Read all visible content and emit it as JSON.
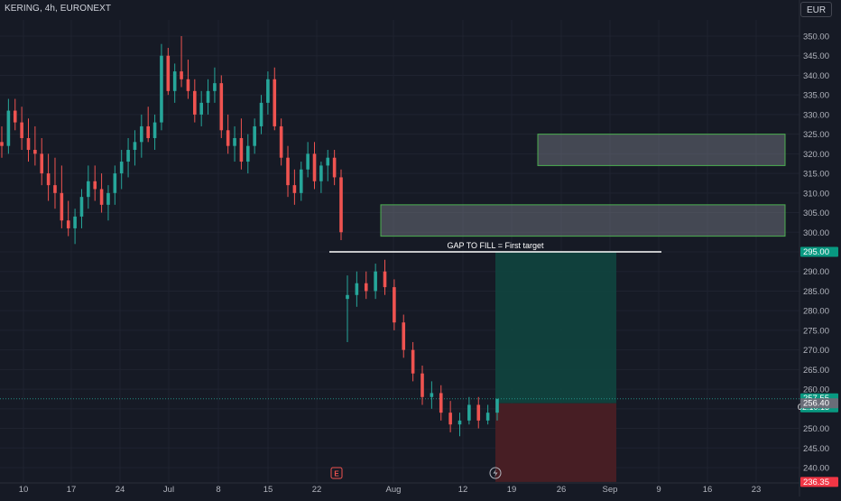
{
  "header": {
    "title": "KERING, 4h, EURONEXT",
    "currency": "EUR"
  },
  "colors": {
    "background": "#161a25",
    "up": "#26a69a",
    "down": "#ef5350",
    "grid": "#1f2330",
    "axis_text": "#b2b5be",
    "zone_stroke": "#4caf50",
    "zone_fill": "#6b6f7a",
    "target_fill": "#10453f",
    "stop_fill": "#4a1f24",
    "label_green": "#089981",
    "label_grey": "#6a6d78",
    "label_red": "#f23645"
  },
  "chart_data": {
    "type": "candlestick",
    "title": "KERING, 4h, EURONEXT",
    "currency": "EUR",
    "y_axis": {
      "ticks": [
        350.0,
        345.0,
        340.0,
        335.0,
        330.0,
        325.0,
        320.0,
        315.0,
        310.0,
        305.0,
        300.0,
        295.0,
        290.0,
        285.0,
        280.0,
        275.0,
        270.0,
        265.0,
        260.0,
        255.0,
        250.0,
        245.0,
        240.0
      ],
      "ylim": [
        237.5,
        352.5
      ]
    },
    "x_axis": {
      "ticks": [
        "10",
        "17",
        "24",
        "Jul",
        "8",
        "15",
        "22",
        "Aug",
        "12",
        "19",
        "26",
        "Sep",
        "9",
        "16",
        "23"
      ]
    },
    "price_labels": [
      {
        "text": "295.00",
        "value": 295.0,
        "kind": "green"
      },
      {
        "text": "257.55",
        "value": 257.55,
        "kind": "green",
        "sub": "02:10:13"
      },
      {
        "text": "256.40",
        "value": 256.4,
        "kind": "grey"
      },
      {
        "text": "236.35",
        "value": 236.35,
        "kind": "red"
      }
    ],
    "annotations": {
      "gap_line": {
        "label": "GAP TO FILL = First target",
        "value": 295.0,
        "x_start": "22",
        "x_end": "9"
      },
      "zones": [
        {
          "top": 325.0,
          "bottom": 317.0,
          "x_start": "19",
          "x_end": "23"
        },
        {
          "top": 307.0,
          "bottom": 299.0,
          "x_start": "Aug",
          "x_end": "23"
        }
      ],
      "position": {
        "entry": 256.4,
        "target": 295.0,
        "stop": 236.35,
        "x_start": "12",
        "x_end": "Sep"
      },
      "current_price": 257.55,
      "events": [
        "E",
        "dividend-icon"
      ]
    },
    "candles": [
      [
        323,
        327,
        319,
        322
      ],
      [
        322,
        334,
        320,
        331
      ],
      [
        331,
        334,
        326,
        328
      ],
      [
        328,
        332,
        321,
        324
      ],
      [
        324,
        329,
        318,
        321
      ],
      [
        321,
        327,
        317,
        320
      ],
      [
        320,
        324,
        312,
        315
      ],
      [
        315,
        320,
        308,
        312
      ],
      [
        312,
        319,
        306,
        310
      ],
      [
        310,
        317,
        301,
        303
      ],
      [
        303,
        308,
        299,
        301
      ],
      [
        301,
        306,
        297,
        304
      ],
      [
        304,
        311,
        301,
        309
      ],
      [
        309,
        317,
        306,
        313
      ],
      [
        313,
        317,
        308,
        311
      ],
      [
        311,
        315,
        305,
        307
      ],
      [
        307,
        312,
        303,
        310
      ],
      [
        310,
        317,
        307,
        315
      ],
      [
        315,
        321,
        311,
        318
      ],
      [
        318,
        324,
        314,
        321
      ],
      [
        321,
        326,
        317,
        323
      ],
      [
        323,
        330,
        319,
        327
      ],
      [
        327,
        332,
        323,
        324
      ],
      [
        324,
        330,
        321,
        328
      ],
      [
        328,
        348,
        326,
        345
      ],
      [
        345,
        347,
        335,
        336
      ],
      [
        336,
        343,
        333,
        341
      ],
      [
        341,
        350,
        337,
        339
      ],
      [
        339,
        344,
        334,
        336
      ],
      [
        336,
        339,
        328,
        330
      ],
      [
        330,
        336,
        327,
        333
      ],
      [
        333,
        339,
        330,
        336
      ],
      [
        336,
        342,
        333,
        338
      ],
      [
        338,
        340,
        324,
        326
      ],
      [
        326,
        330,
        320,
        322
      ],
      [
        322,
        327,
        318,
        324
      ],
      [
        324,
        329,
        316,
        318
      ],
      [
        318,
        325,
        315,
        322
      ],
      [
        322,
        329,
        320,
        327
      ],
      [
        327,
        335,
        325,
        333
      ],
      [
        333,
        341,
        330,
        339
      ],
      [
        339,
        342,
        326,
        327
      ],
      [
        327,
        329,
        317,
        319
      ],
      [
        319,
        322,
        309,
        312
      ],
      [
        312,
        316,
        307,
        310
      ],
      [
        310,
        318,
        308,
        316
      ],
      [
        316,
        323,
        314,
        320
      ],
      [
        320,
        323,
        311,
        313
      ],
      [
        313,
        318,
        310,
        317
      ],
      [
        317,
        321,
        313,
        319
      ],
      [
        319,
        321,
        312,
        314
      ],
      [
        314,
        316,
        298,
        300
      ],
      [
        283,
        289,
        272,
        284
      ],
      [
        284,
        290,
        281,
        287
      ],
      [
        287,
        290,
        283,
        285
      ],
      [
        285,
        292,
        283,
        290
      ],
      [
        290,
        293,
        284,
        286
      ],
      [
        286,
        288,
        275,
        277
      ],
      [
        277,
        279,
        268,
        270
      ],
      [
        270,
        272,
        262,
        264
      ],
      [
        264,
        266,
        256,
        258
      ],
      [
        258,
        262,
        255,
        259
      ],
      [
        259,
        261,
        252,
        254
      ],
      [
        254,
        257,
        249,
        251
      ],
      [
        251,
        254,
        248,
        252
      ],
      [
        252,
        258,
        251,
        256
      ],
      [
        256,
        258,
        250,
        252
      ],
      [
        252,
        256,
        251,
        254
      ],
      [
        254,
        257,
        252,
        257.55
      ]
    ]
  }
}
